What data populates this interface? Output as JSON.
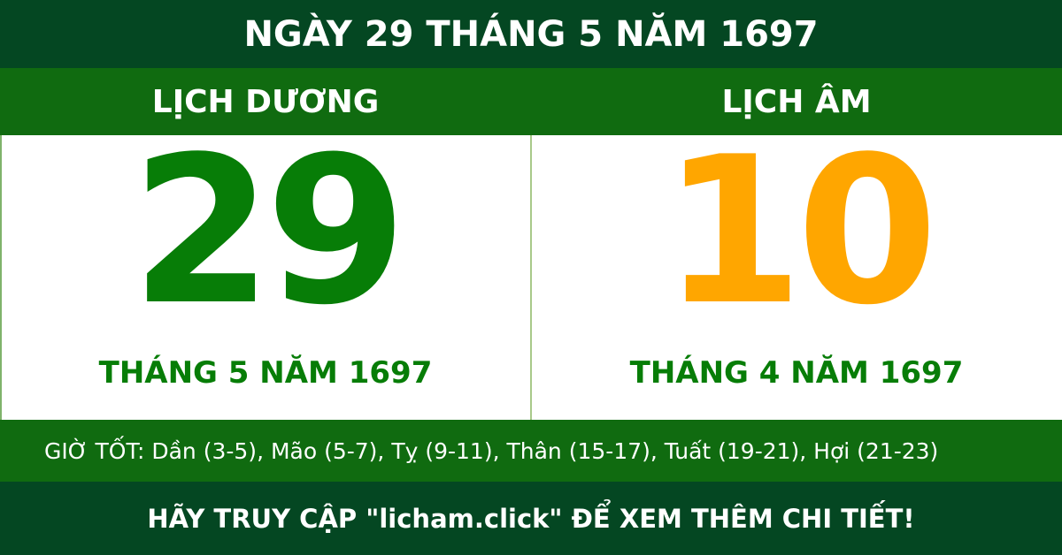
{
  "title": "NGÀY 29 THÁNG 5 NĂM 1697",
  "solar": {
    "heading": "LỊCH DƯƠNG",
    "day": "29",
    "month_year": "THÁNG 5 NĂM 1697"
  },
  "lunar": {
    "heading": "LỊCH ÂM",
    "day": "10",
    "month_year": "THÁNG 4 NĂM 1697"
  },
  "good_hours": "GIỜ TỐT: Dần (3-5), Mão (5-7), Tỵ (9-11), Thân (15-17), Tuất (19-21), Hợi (21-23)",
  "footer": "HÃY TRUY CẬP \"licham.click\" ĐỂ XEM THÊM CHI TIẾT!",
  "colors": {
    "dark_green": "#044722",
    "band_green": "#106b10",
    "solar_green": "#077d07",
    "lunar_orange": "#ffa600"
  }
}
